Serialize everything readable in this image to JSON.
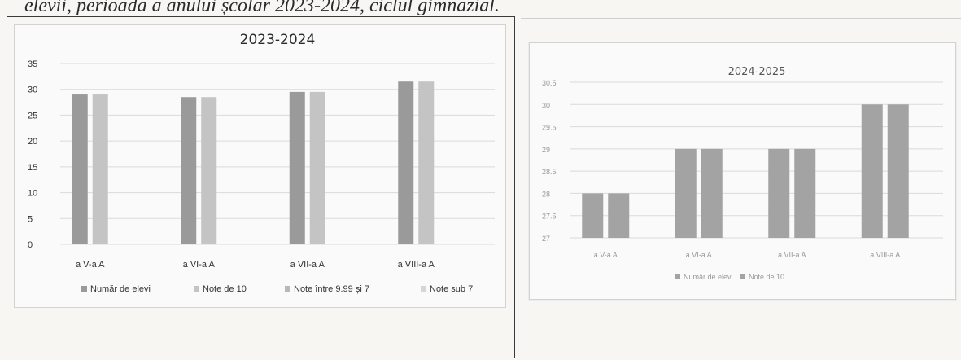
{
  "caption": "elevii, perioada a anului școlar 2023-2024,  ciclul gimnazial.",
  "colors": {
    "left_series": [
      "#9a9a9a",
      "#c4c4c4",
      "#b8b8b8",
      "#d6d6d6"
    ],
    "right_series": [
      "#a3a3a3",
      "#a3a3a3"
    ],
    "grid": "#dadada",
    "text": "#3a3a3a",
    "faint_text": "#9a9a9a"
  },
  "chart_data": [
    {
      "type": "bar",
      "title": "2023-2024",
      "categories": [
        "a V-a A",
        "a VI-a A",
        "a VII-a A",
        "a VIII-a A"
      ],
      "yticks": [
        "0",
        "5",
        "10",
        "15",
        "20",
        "25",
        "30",
        "35"
      ],
      "ylim": [
        0,
        35
      ],
      "grid": true,
      "legend_position": "bottom",
      "series": [
        {
          "name": "Număr de elevi",
          "values": [
            29,
            28.5,
            29.5,
            31.5
          ]
        },
        {
          "name": "Note de 10",
          "values": [
            29,
            28.5,
            29.5,
            31.5
          ]
        },
        {
          "name": "Note între 9.99 și 7",
          "values": [
            0,
            0,
            0,
            0
          ]
        },
        {
          "name": "Note sub 7",
          "values": [
            0,
            0,
            0,
            0
          ]
        }
      ],
      "legend_labels": [
        "Număr de elevi",
        "Note de 10",
        "Note între 9.99 și 7",
        "Note sub 7"
      ]
    },
    {
      "type": "bar",
      "title": "2024-2025",
      "categories": [
        "a V-a A",
        "a VI-a A",
        "a VII-a A",
        "a VIII-a A"
      ],
      "yticks": [
        "27",
        "27.5",
        "28",
        "28.5",
        "29",
        "29.5",
        "30",
        "30.5"
      ],
      "ylim": [
        27,
        30.5
      ],
      "grid": true,
      "legend_position": "bottom",
      "series": [
        {
          "name": "Număr de elevi",
          "values": [
            28,
            29,
            29,
            30
          ]
        },
        {
          "name": "Note de 10",
          "values": [
            28,
            29,
            29,
            30
          ]
        }
      ],
      "legend_labels": [
        "Număr de elevi",
        "Note de 10"
      ]
    }
  ]
}
